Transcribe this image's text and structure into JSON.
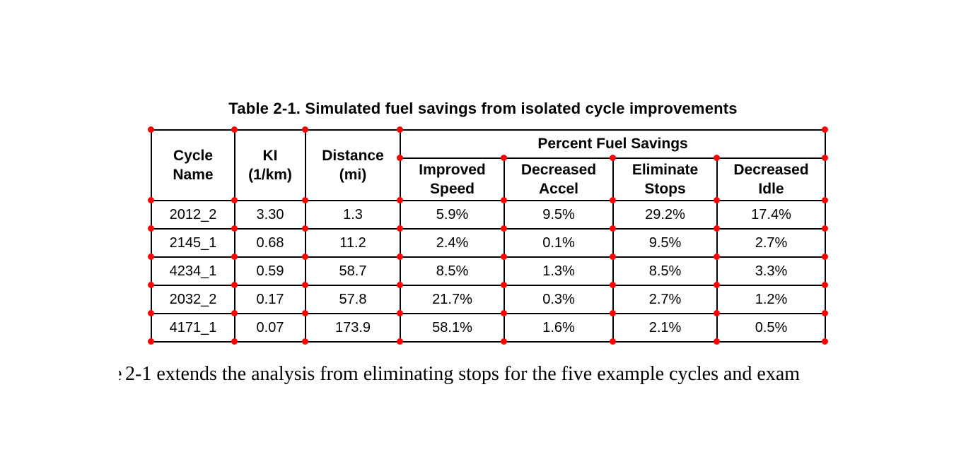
{
  "caption": "Table 2-1. Simulated fuel savings from isolated cycle improvements",
  "table": {
    "span_header": "Percent Fuel Savings",
    "columns": [
      "Cycle\nName",
      "KI\n(1/km)",
      "Distance\n(mi)"
    ],
    "sub_columns": [
      "Improved\nSpeed",
      "Decreased\nAccel",
      "Eliminate\nStops",
      "Decreased\nIdle"
    ],
    "rows": [
      [
        "2012_2",
        "3.30",
        "1.3",
        "5.9%",
        "9.5%",
        "29.2%",
        "17.4%"
      ],
      [
        "2145_1",
        "0.68",
        "11.2",
        "2.4%",
        "0.1%",
        "9.5%",
        "2.7%"
      ],
      [
        "4234_1",
        "0.59",
        "58.7",
        "8.5%",
        "1.3%",
        "8.5%",
        "3.3%"
      ],
      [
        "2032_2",
        "0.17",
        "57.8",
        "21.7%",
        "0.3%",
        "2.7%",
        "1.2%"
      ],
      [
        "4171_1",
        "0.07",
        "173.9",
        "58.1%",
        "1.6%",
        "2.1%",
        "0.5%"
      ]
    ]
  },
  "paragraph": {
    "fragment": "e",
    "text": "2-1 extends the analysis from eliminating stops for the five example cycles and exam"
  },
  "annotations": {
    "marker_color": "#ff0000"
  }
}
